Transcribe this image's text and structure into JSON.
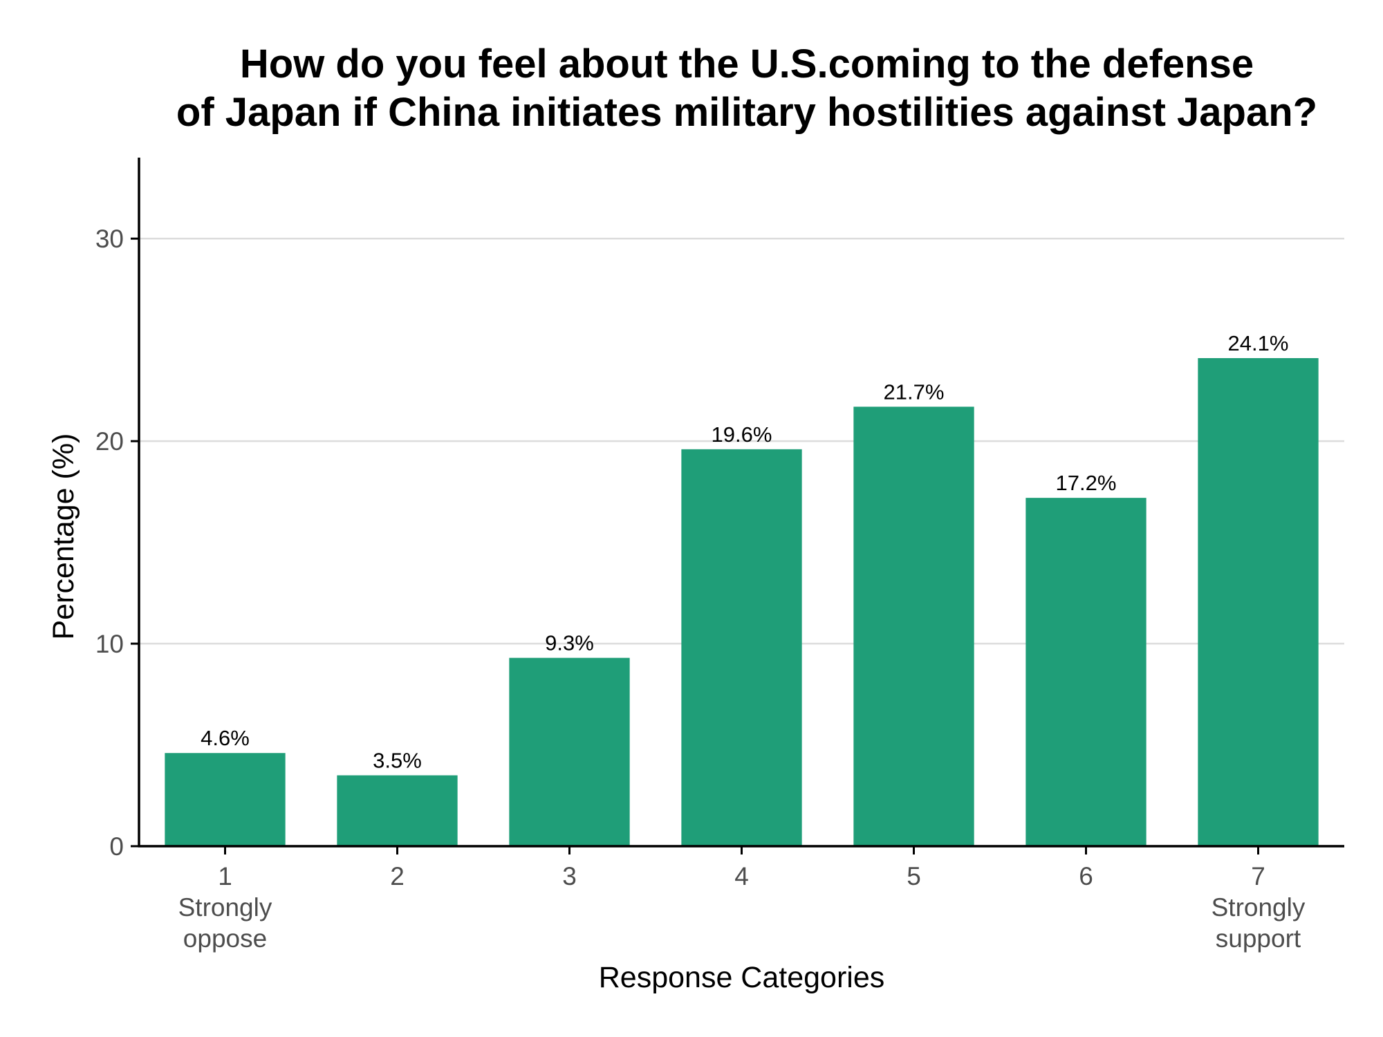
{
  "chart_data": {
    "type": "bar",
    "title": "How do you feel about the U.S.coming to the defense\nof Japan if China initiates military hostilities against Japan?",
    "xlabel": "Response Categories",
    "ylabel": "Percentage (%)",
    "categories": [
      "1\nStrongly\noppose",
      "2",
      "3",
      "4",
      "5",
      "6",
      "7\nStrongly\nsupport"
    ],
    "values": [
      4.6,
      3.5,
      9.3,
      19.6,
      21.7,
      17.2,
      24.1
    ],
    "value_labels": [
      "4.6%",
      "3.5%",
      "9.3%",
      "19.6%",
      "21.7%",
      "17.2%",
      "24.1%"
    ],
    "yticks": [
      0,
      10,
      20,
      30
    ],
    "ylim": [
      0,
      34
    ],
    "grid": "horizontal major",
    "legend": "none",
    "colors": {
      "bar": "#1f9e78",
      "grid": "#dcdcdc",
      "axis": "#000000",
      "tick_label": "#4d4d4d",
      "text": "#000000"
    }
  }
}
